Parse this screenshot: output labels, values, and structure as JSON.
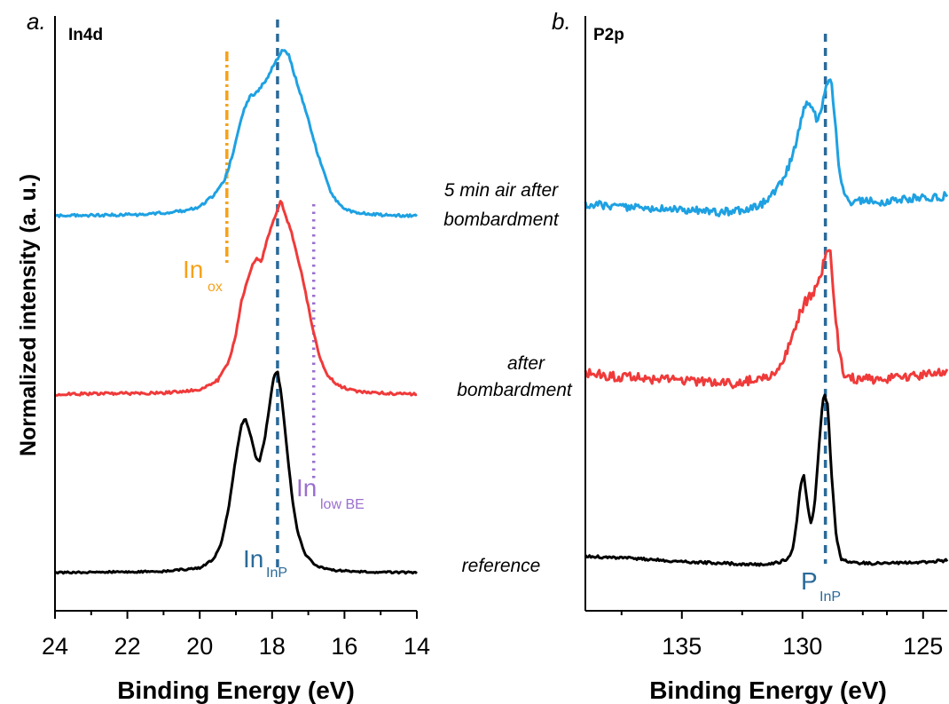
{
  "colors": {
    "air": "#1ea1e2",
    "bombard": "#f03a3a",
    "reference": "#000000",
    "inp_marker": "#2a6a99",
    "ox_marker": "#f5a21b",
    "lowbe_marker": "#9b6fcf",
    "axis": "#000000"
  },
  "ylabel": "Normalized intensity (a. u.)",
  "sample_labels": {
    "air_line1": "5 min air after",
    "air_line2": "bombardment",
    "bombard_line1": "after",
    "bombard_line2": "bombardment",
    "reference": "reference"
  },
  "chart_data": [
    {
      "type": "line",
      "panel_letter": "a.",
      "title": "In4d",
      "xlabel": "Binding Energy (eV)",
      "xlim": [
        24,
        14
      ],
      "x_ticks": [
        "24",
        "22",
        "20",
        "18",
        "16",
        "14"
      ],
      "x_reversed": true,
      "y_ticks": "none",
      "markers": [
        {
          "name": "In_InP",
          "x": 17.85,
          "style": "dashed",
          "color_key": "inp_marker",
          "label_main": "In",
          "label_sub": "InP"
        },
        {
          "name": "In_ox",
          "x": 19.25,
          "style": "dash-dot",
          "color_key": "ox_marker",
          "label_main": "In",
          "label_sub": "ox"
        },
        {
          "name": "In_low_BE",
          "x": 16.85,
          "style": "dotted",
          "color_key": "lowbe_marker",
          "label_main": "In",
          "label_sub": "low BE"
        }
      ],
      "series": [
        {
          "key": "air",
          "color_key": "air",
          "points": [
            [
              24.0,
              0.0
            ],
            [
              21.5,
              0.005
            ],
            [
              20.5,
              0.02
            ],
            [
              20.0,
              0.04
            ],
            [
              19.6,
              0.09
            ],
            [
              19.3,
              0.16
            ],
            [
              19.1,
              0.26
            ],
            [
              18.95,
              0.36
            ],
            [
              18.8,
              0.45
            ],
            [
              18.6,
              0.52
            ],
            [
              18.45,
              0.53
            ],
            [
              18.3,
              0.56
            ],
            [
              18.15,
              0.59
            ],
            [
              18.0,
              0.64
            ],
            [
              17.85,
              0.68
            ],
            [
              17.7,
              0.72
            ],
            [
              17.55,
              0.7
            ],
            [
              17.4,
              0.62
            ],
            [
              17.2,
              0.52
            ],
            [
              17.0,
              0.42
            ],
            [
              16.8,
              0.3
            ],
            [
              16.6,
              0.2
            ],
            [
              16.4,
              0.11
            ],
            [
              16.2,
              0.06
            ],
            [
              16.0,
              0.03
            ],
            [
              15.7,
              0.015
            ],
            [
              15.2,
              0.005
            ],
            [
              14.3,
              0.0
            ]
          ]
        },
        {
          "key": "bombard",
          "color_key": "bombard",
          "points": [
            [
              24.0,
              0.0
            ],
            [
              21.0,
              0.005
            ],
            [
              20.0,
              0.02
            ],
            [
              19.5,
              0.06
            ],
            [
              19.2,
              0.14
            ],
            [
              19.0,
              0.26
            ],
            [
              18.85,
              0.4
            ],
            [
              18.7,
              0.48
            ],
            [
              18.55,
              0.56
            ],
            [
              18.4,
              0.59
            ],
            [
              18.3,
              0.57
            ],
            [
              18.15,
              0.66
            ],
            [
              18.0,
              0.74
            ],
            [
              17.85,
              0.8
            ],
            [
              17.75,
              0.84
            ],
            [
              17.65,
              0.78
            ],
            [
              17.5,
              0.72
            ],
            [
              17.3,
              0.6
            ],
            [
              17.1,
              0.46
            ],
            [
              16.9,
              0.3
            ],
            [
              16.7,
              0.17
            ],
            [
              16.5,
              0.09
            ],
            [
              16.2,
              0.04
            ],
            [
              15.8,
              0.015
            ],
            [
              15.0,
              0.005
            ],
            [
              14.0,
              0.0
            ]
          ]
        },
        {
          "key": "reference",
          "color_key": "reference",
          "points": [
            [
              24.0,
              0.0
            ],
            [
              21.0,
              0.005
            ],
            [
              20.0,
              0.02
            ],
            [
              19.6,
              0.06
            ],
            [
              19.4,
              0.13
            ],
            [
              19.2,
              0.28
            ],
            [
              19.0,
              0.5
            ],
            [
              18.85,
              0.64
            ],
            [
              18.75,
              0.67
            ],
            [
              18.6,
              0.6
            ],
            [
              18.45,
              0.5
            ],
            [
              18.35,
              0.48
            ],
            [
              18.2,
              0.58
            ],
            [
              18.05,
              0.75
            ],
            [
              17.95,
              0.85
            ],
            [
              17.85,
              0.87
            ],
            [
              17.75,
              0.78
            ],
            [
              17.6,
              0.55
            ],
            [
              17.45,
              0.33
            ],
            [
              17.3,
              0.18
            ],
            [
              17.1,
              0.08
            ],
            [
              16.8,
              0.03
            ],
            [
              16.3,
              0.01
            ],
            [
              15.5,
              0.003
            ],
            [
              14.0,
              0.0
            ]
          ]
        }
      ]
    },
    {
      "type": "line",
      "panel_letter": "b.",
      "title": "P2p",
      "xlabel": "Binding Energy (eV)",
      "xlim": [
        139,
        124
      ],
      "x_ticks": [
        "135",
        "130",
        "125"
      ],
      "x_reversed": true,
      "y_ticks": "none",
      "markers": [
        {
          "name": "P_InP",
          "x": 129.05,
          "style": "dashed",
          "color_key": "inp_marker",
          "label_main": "P",
          "label_sub": "InP"
        }
      ],
      "series": [
        {
          "key": "air",
          "color_key": "air",
          "points": [
            [
              139.0,
              0.03
            ],
            [
              137.0,
              0.015
            ],
            [
              135.0,
              0.005
            ],
            [
              133.5,
              -0.01
            ],
            [
              132.5,
              0.0
            ],
            [
              131.7,
              0.03
            ],
            [
              131.2,
              0.08
            ],
            [
              130.8,
              0.15
            ],
            [
              130.4,
              0.27
            ],
            [
              130.1,
              0.42
            ],
            [
              129.9,
              0.51
            ],
            [
              129.75,
              0.53
            ],
            [
              129.6,
              0.5
            ],
            [
              129.4,
              0.44
            ],
            [
              129.25,
              0.47
            ],
            [
              129.1,
              0.55
            ],
            [
              128.95,
              0.64
            ],
            [
              128.8,
              0.62
            ],
            [
              128.65,
              0.45
            ],
            [
              128.5,
              0.22
            ],
            [
              128.3,
              0.08
            ],
            [
              128.0,
              0.04
            ],
            [
              127.5,
              0.05
            ],
            [
              126.5,
              0.04
            ],
            [
              125.5,
              0.06
            ],
            [
              124.0,
              0.07
            ]
          ]
        },
        {
          "key": "bombard",
          "color_key": "bombard",
          "points": [
            [
              139.0,
              0.03
            ],
            [
              137.0,
              0.01
            ],
            [
              135.0,
              0.0
            ],
            [
              133.0,
              -0.02
            ],
            [
              132.2,
              0.0
            ],
            [
              131.2,
              0.03
            ],
            [
              130.8,
              0.09
            ],
            [
              130.5,
              0.18
            ],
            [
              130.2,
              0.3
            ],
            [
              129.9,
              0.38
            ],
            [
              129.6,
              0.42
            ],
            [
              129.4,
              0.45
            ],
            [
              129.2,
              0.52
            ],
            [
              129.0,
              0.66
            ],
            [
              128.85,
              0.62
            ],
            [
              128.7,
              0.4
            ],
            [
              128.5,
              0.15
            ],
            [
              128.3,
              0.03
            ],
            [
              127.8,
              0.0
            ],
            [
              126.5,
              0.01
            ],
            [
              125.0,
              0.02
            ],
            [
              124.0,
              0.04
            ]
          ]
        },
        {
          "key": "reference",
          "color_key": "reference",
          "points": [
            [
              139.0,
              0.04
            ],
            [
              137.0,
              0.03
            ],
            [
              135.0,
              0.015
            ],
            [
              133.0,
              0.005
            ],
            [
              132.0,
              0.0
            ],
            [
              131.0,
              0.01
            ],
            [
              130.6,
              0.03
            ],
            [
              130.4,
              0.08
            ],
            [
              130.25,
              0.2
            ],
            [
              130.1,
              0.37
            ],
            [
              129.95,
              0.44
            ],
            [
              129.8,
              0.3
            ],
            [
              129.65,
              0.2
            ],
            [
              129.5,
              0.28
            ],
            [
              129.35,
              0.52
            ],
            [
              129.2,
              0.75
            ],
            [
              129.1,
              0.84
            ],
            [
              128.95,
              0.78
            ],
            [
              128.8,
              0.45
            ],
            [
              128.6,
              0.13
            ],
            [
              128.4,
              0.03
            ],
            [
              128.0,
              0.01
            ],
            [
              127.0,
              0.005
            ],
            [
              125.5,
              0.01
            ],
            [
              124.0,
              0.02
            ]
          ]
        }
      ]
    }
  ]
}
